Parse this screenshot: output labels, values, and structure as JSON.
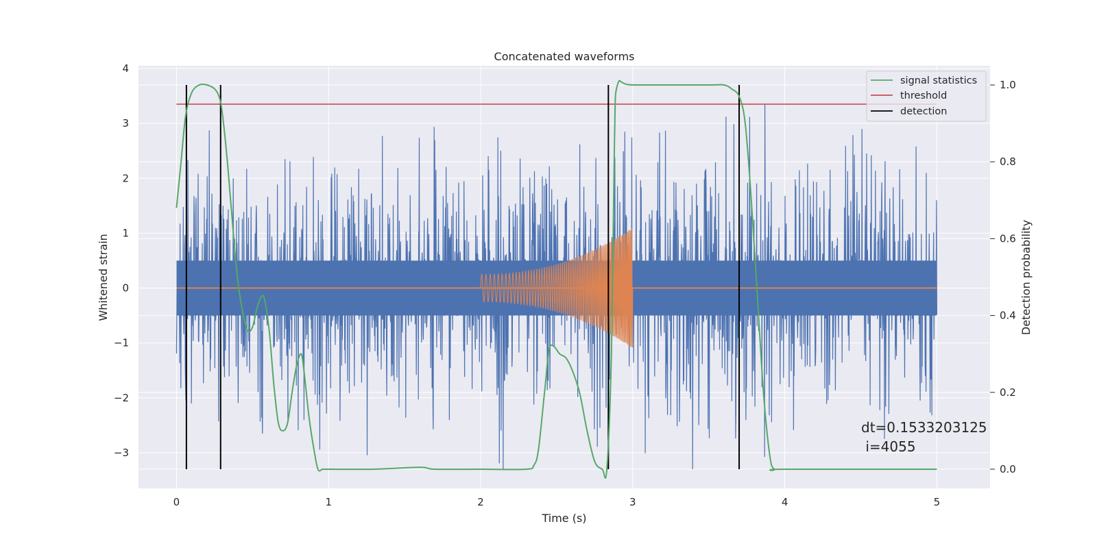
{
  "chart_data": {
    "type": "line",
    "title": "Concatenated waveforms",
    "xlabel": "Time (s)",
    "ylabel": "Whitened strain",
    "ylabel_right": "Detection probability",
    "xlim": [
      -0.25,
      5.35
    ],
    "ylim": [
      -3.65,
      4.05
    ],
    "ylim_right": [
      -0.05,
      1.05
    ],
    "x_ticks": [
      0,
      1,
      2,
      3,
      4,
      5
    ],
    "y_ticks": [
      -3,
      -2,
      -1,
      0,
      1,
      2,
      3,
      4
    ],
    "y_ticks_right": [
      0.0,
      0.2,
      0.4,
      0.6,
      0.8,
      1.0
    ],
    "x_tick_labels": [
      "0",
      "1",
      "2",
      "3",
      "4",
      "5"
    ],
    "y_tick_labels": [
      "−3",
      "−2",
      "−1",
      "0",
      "1",
      "2",
      "3",
      "4"
    ],
    "y_tick_labels_right": [
      "0.0",
      "0.2",
      "0.4",
      "0.6",
      "0.8",
      "1.0"
    ],
    "grid": true,
    "legend_position": "top-right",
    "colors": {
      "strain": "#4c72b0",
      "injected_signal": "#dd8452",
      "signal_statistics": "#55a868",
      "threshold": "#c44e52",
      "detection": "#000000",
      "background": "#eaeaf2",
      "grid": "#ffffff"
    },
    "strain": {
      "x_range": [
        0,
        5
      ],
      "samples": 4096,
      "core_amplitude": 0.5,
      "max_positive": 3.7,
      "max_negative": -3.3
    },
    "injected_signal": {
      "type": "chirp",
      "x_range": [
        2.0,
        3.0
      ],
      "start_amplitude": 0.25,
      "end_amplitude": 1.1,
      "zero_line_x_range": [
        0,
        5
      ]
    },
    "series": [
      {
        "name": "signal statistics",
        "axis": "right",
        "x": [
          0,
          0.03,
          0.06,
          0.1,
          0.15,
          0.2,
          0.25,
          0.28,
          0.3,
          0.33,
          0.36,
          0.4,
          0.44,
          0.47,
          0.5,
          0.53,
          0.56,
          0.58,
          0.61,
          0.64,
          0.67,
          0.7,
          0.73,
          0.76,
          0.79,
          0.82,
          0.84,
          0.87,
          0.9,
          0.93,
          0.96,
          1.0,
          1.3,
          1.6,
          1.7,
          2.0,
          2.3,
          2.35,
          2.38,
          2.42,
          2.45,
          2.48,
          2.52,
          2.56,
          2.6,
          2.65,
          2.7,
          2.75,
          2.8,
          2.83,
          2.86,
          2.88,
          2.9,
          3.0,
          3.5,
          3.6,
          3.65,
          3.7,
          3.74,
          3.78,
          3.82,
          3.86,
          3.9,
          3.93,
          4.0,
          5.0
        ],
        "y": [
          0.68,
          0.8,
          0.92,
          0.98,
          1.0,
          1.0,
          0.99,
          0.97,
          0.93,
          0.82,
          0.68,
          0.5,
          0.4,
          0.36,
          0.37,
          0.42,
          0.45,
          0.44,
          0.36,
          0.22,
          0.12,
          0.1,
          0.12,
          0.2,
          0.27,
          0.3,
          0.25,
          0.14,
          0.06,
          0.0,
          0.0,
          0.0,
          0.0,
          0.005,
          0.0,
          0.0,
          0.0,
          0.01,
          0.05,
          0.2,
          0.31,
          0.32,
          0.3,
          0.29,
          0.26,
          0.2,
          0.1,
          0.02,
          0.0,
          0.0,
          0.3,
          0.85,
          1.0,
          1.0,
          1.0,
          1.0,
          0.99,
          0.97,
          0.9,
          0.7,
          0.45,
          0.2,
          0.04,
          0.0,
          0.0,
          0.0
        ]
      },
      {
        "name": "threshold",
        "axis": "right",
        "x": [
          0,
          5
        ],
        "y": [
          0.95,
          0.95
        ]
      },
      {
        "name": "detection",
        "axis": "right",
        "type": "vlines",
        "x": [
          0.065,
          0.29,
          2.84,
          3.7
        ],
        "ymin": 0.0,
        "ymax": 1.0
      }
    ],
    "annotation": {
      "text_line1": "dt=0.1533203125",
      "text_line2": " i=4055",
      "x": 4.5,
      "y": -2.5
    }
  }
}
